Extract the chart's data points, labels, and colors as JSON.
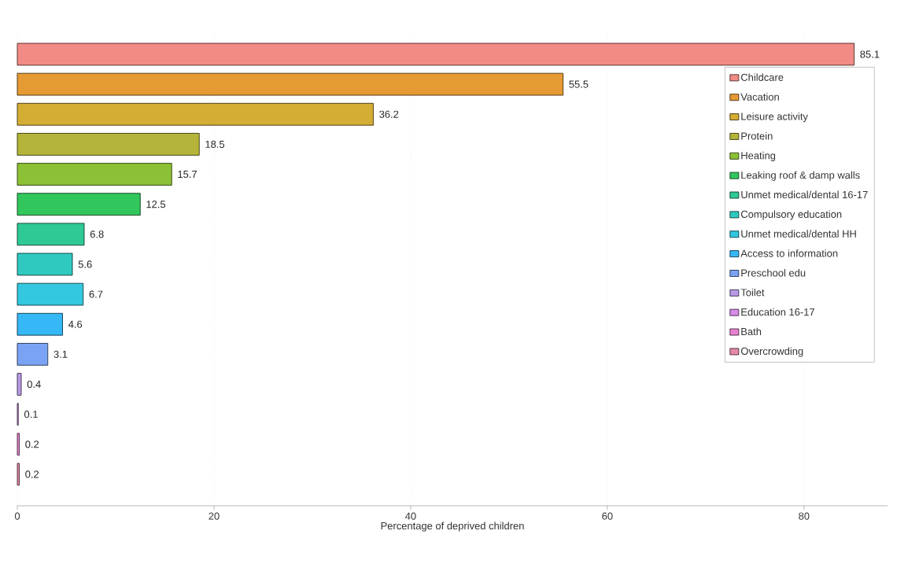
{
  "chart_data": {
    "type": "bar",
    "orientation": "horizontal",
    "xlabel": "Percentage of deprived children",
    "categories": [
      null,
      null,
      null,
      null,
      null,
      null,
      null,
      null,
      null,
      null,
      null,
      null,
      null,
      null,
      null
    ],
    "series": [
      {
        "name": "Childcare",
        "color": "#f28b86",
        "values": [
          85.1,
          null,
          null,
          null,
          null,
          null,
          null,
          null,
          null,
          null,
          null,
          null,
          null,
          null,
          null
        ]
      },
      {
        "name": "Vacation",
        "color": "#e59a33",
        "values": [
          null,
          55.5,
          null,
          null,
          null,
          null,
          null,
          null,
          null,
          null,
          null,
          null,
          null,
          null,
          null
        ]
      },
      {
        "name": "Leisure activity",
        "color": "#d4ad35",
        "values": [
          null,
          null,
          36.2,
          null,
          null,
          null,
          null,
          null,
          null,
          null,
          null,
          null,
          null,
          null,
          null
        ]
      },
      {
        "name": "Protein",
        "color": "#b4b43a",
        "values": [
          null,
          null,
          null,
          18.5,
          null,
          null,
          null,
          null,
          null,
          null,
          null,
          null,
          null,
          null,
          null
        ]
      },
      {
        "name": "Heating",
        "color": "#8cc135",
        "values": [
          null,
          null,
          null,
          null,
          15.7,
          null,
          null,
          null,
          null,
          null,
          null,
          null,
          null,
          null,
          null
        ]
      },
      {
        "name": "Leaking roof & damp walls",
        "color": "#32c75d",
        "values": [
          null,
          null,
          null,
          null,
          null,
          12.5,
          null,
          null,
          null,
          null,
          null,
          null,
          null,
          null,
          null
        ]
      },
      {
        "name": "Unmet medical/dental 16-17",
        "color": "#2ec995",
        "values": [
          null,
          null,
          null,
          null,
          null,
          null,
          6.8,
          null,
          null,
          null,
          null,
          null,
          null,
          null,
          null
        ]
      },
      {
        "name": "Compulsory education",
        "color": "#30c9c0",
        "values": [
          null,
          null,
          null,
          null,
          null,
          null,
          null,
          5.6,
          null,
          null,
          null,
          null,
          null,
          null,
          null
        ]
      },
      {
        "name": "Unmet medical/dental HH",
        "color": "#33c8e0",
        "values": [
          null,
          null,
          null,
          null,
          null,
          null,
          null,
          null,
          6.7,
          null,
          null,
          null,
          null,
          null,
          null
        ]
      },
      {
        "name": "Access to information",
        "color": "#35b8f5",
        "values": [
          null,
          null,
          null,
          null,
          null,
          null,
          null,
          null,
          null,
          4.6,
          null,
          null,
          null,
          null,
          null
        ]
      },
      {
        "name": "Preschool edu",
        "color": "#7aa3f5",
        "values": [
          null,
          null,
          null,
          null,
          null,
          null,
          null,
          null,
          null,
          null,
          3.1,
          null,
          null,
          null,
          null
        ]
      },
      {
        "name": "Toilet",
        "color": "#b89ae8",
        "values": [
          null,
          null,
          null,
          null,
          null,
          null,
          null,
          null,
          null,
          null,
          null,
          0.4,
          null,
          null,
          null
        ]
      },
      {
        "name": "Education 16-17",
        "color": "#d98be8",
        "values": [
          null,
          null,
          null,
          null,
          null,
          null,
          null,
          null,
          null,
          null,
          null,
          null,
          0.1,
          null,
          null
        ]
      },
      {
        "name": "Bath",
        "color": "#e683d0",
        "values": [
          null,
          null,
          null,
          null,
          null,
          null,
          null,
          null,
          null,
          null,
          null,
          null,
          null,
          0.2,
          null
        ]
      },
      {
        "name": "Overcrowding",
        "color": "#e68aa5",
        "values": [
          null,
          null,
          null,
          null,
          null,
          null,
          null,
          null,
          null,
          null,
          null,
          null,
          null,
          null,
          0.2
        ]
      }
    ],
    "xlim": [
      0,
      88.5
    ],
    "xticks": [
      0,
      20,
      40,
      60,
      80
    ],
    "grid": "x",
    "legend": "top right",
    "data_labels": true
  }
}
